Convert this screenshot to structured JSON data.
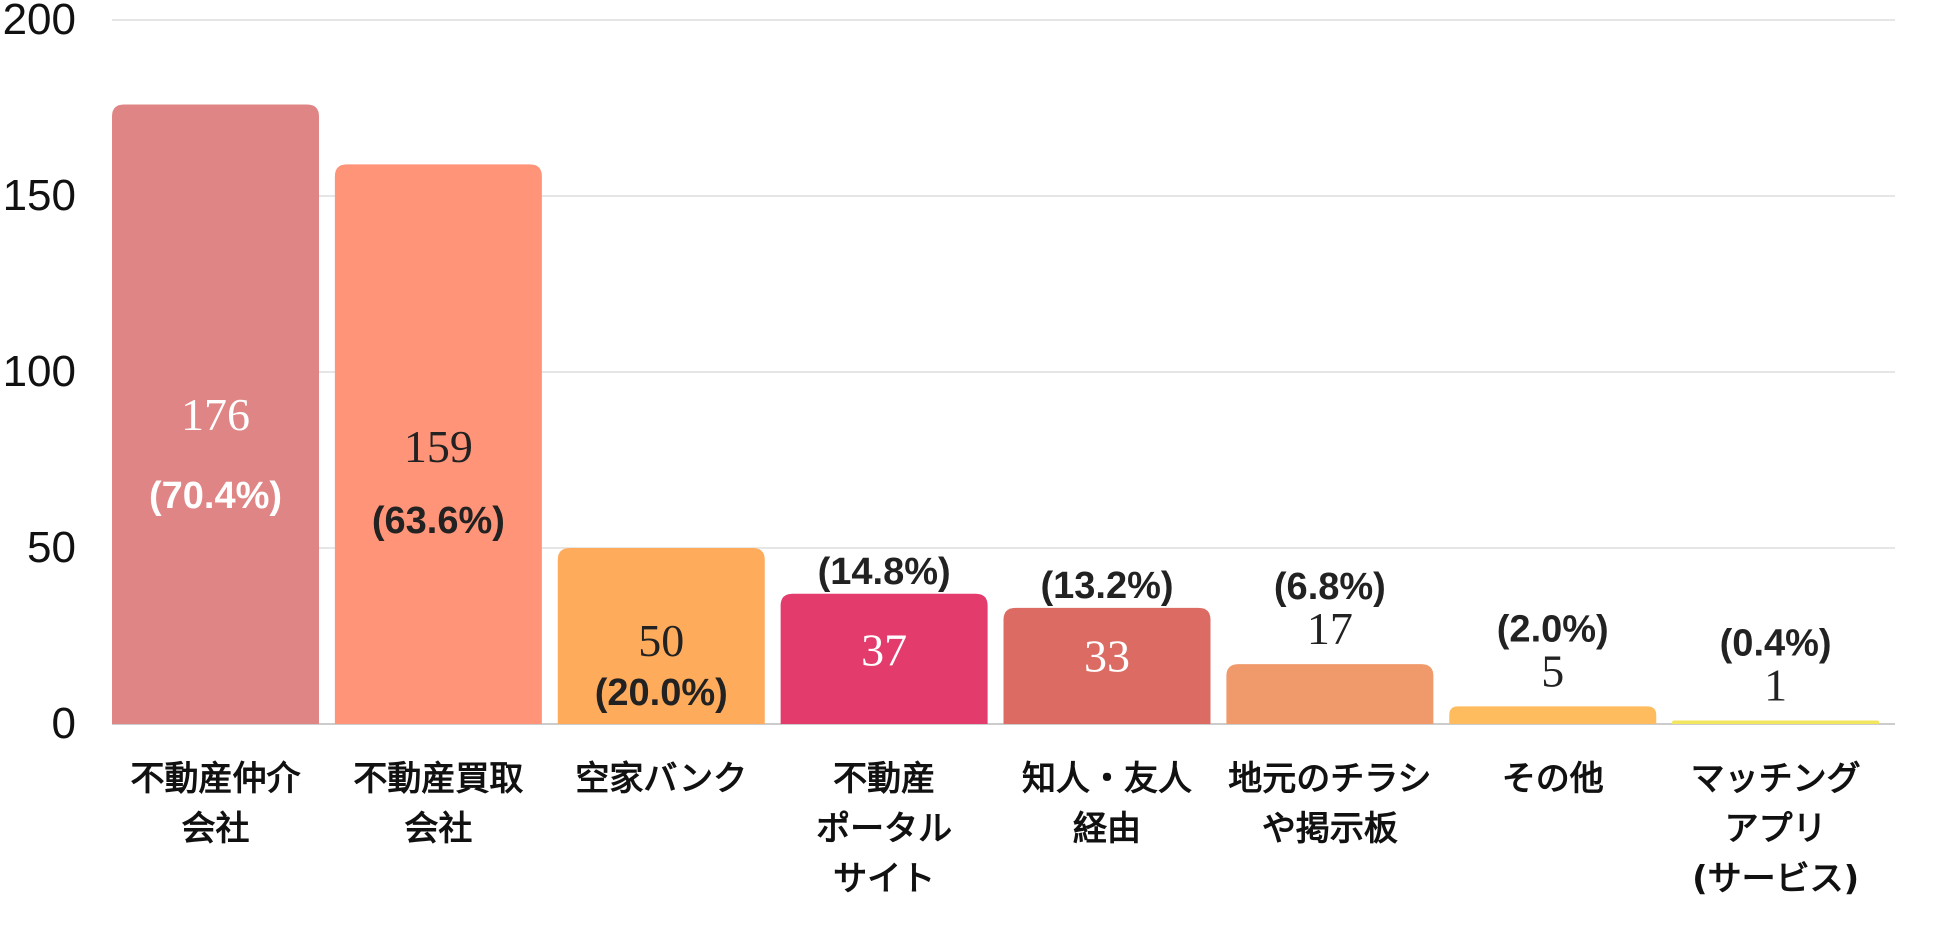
{
  "chart_data": {
    "type": "bar",
    "categories": [
      [
        "不動産仲介",
        "会社"
      ],
      [
        "不動産買取",
        "会社"
      ],
      [
        "空家バンク"
      ],
      [
        "不動産",
        "ポータル",
        "サイト"
      ],
      [
        "知人・友人",
        "経由"
      ],
      [
        "地元のチラシ",
        "や掲示板"
      ],
      [
        "その他"
      ],
      [
        "マッチング",
        "アプリ",
        "(サービス)"
      ]
    ],
    "values": [
      176,
      159,
      50,
      37,
      33,
      17,
      5,
      1
    ],
    "percent_labels": [
      "(70.4%)",
      "(63.6%)",
      "(20.0%)",
      "(14.8%)",
      "(13.2%)",
      "(6.8%)",
      "(2.0%)",
      "(0.4%)"
    ],
    "colors": [
      "#E08585",
      "#FF9478",
      "#FFAB5C",
      "#E33B6B",
      "#DB6B63",
      "#F09A6B",
      "#FFBC5E",
      "#F2E65E"
    ],
    "value_text_colors": [
      "#ffffff",
      "#222222",
      "#222222",
      "#ffffff",
      "#ffffff",
      "#222222",
      "#222222",
      "#222222"
    ],
    "pct_text_colors": [
      "#ffffff",
      "#222222",
      "#222222",
      "#222222",
      "#222222",
      "#222222",
      "#222222",
      "#222222"
    ],
    "label_inside": [
      true,
      true,
      true,
      false,
      false,
      false,
      false,
      false
    ],
    "yticks": [
      0,
      50,
      100,
      150,
      200
    ],
    "ylim": [
      0,
      200
    ],
    "grid": true
  }
}
